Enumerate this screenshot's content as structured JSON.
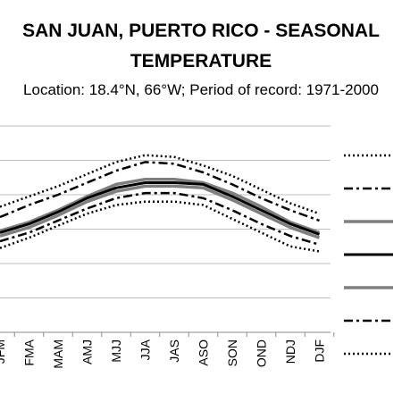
{
  "chart_data": {
    "type": "line",
    "title": "SAN JUAN, PUERTO RICO - SEASONAL TEMPERATURE",
    "title_line1": "SAN JUAN, PUERTO RICO - SEASONAL",
    "title_line2": "TEMPERATURE",
    "subtitle": "Location: 18.4°N, 66°W; Period of record: 1971-2000",
    "categories": [
      "JFM",
      "FMA",
      "MAM",
      "AMJ",
      "MJJ",
      "JJA",
      "JAS",
      "ASO",
      "SON",
      "OND",
      "NDJ",
      "DJF"
    ],
    "ylim": [
      0,
      6
    ],
    "grid": true,
    "legend_position": "right",
    "series": [
      {
        "name": "",
        "style": "dotted",
        "color": "#000000",
        "values": [
          3.65,
          3.95,
          4.25,
          4.6,
          4.95,
          5.15,
          5.1,
          4.85,
          4.55,
          4.15,
          3.75,
          3.45
        ]
      },
      {
        "name": "",
        "style": "dashdot",
        "color": "#000000",
        "values": [
          3.35,
          3.7,
          4.0,
          4.35,
          4.7,
          4.95,
          4.9,
          4.65,
          4.3,
          3.9,
          3.55,
          3.25
        ]
      },
      {
        "name": "",
        "style": "solid",
        "color": "#7f7f7f",
        "values": [
          2.95,
          3.2,
          3.55,
          3.95,
          4.3,
          4.45,
          4.45,
          4.35,
          4.05,
          3.65,
          3.2,
          2.9
        ]
      },
      {
        "name": "",
        "style": "solid",
        "color": "#000000",
        "values": [
          2.9,
          3.15,
          3.5,
          3.9,
          4.2,
          4.35,
          4.35,
          4.3,
          3.95,
          3.55,
          3.15,
          2.85
        ]
      },
      {
        "name": "",
        "style": "solid",
        "color": "#7f7f7f",
        "values": [
          2.8,
          3.05,
          3.4,
          3.8,
          4.1,
          4.25,
          4.25,
          4.2,
          3.85,
          3.45,
          3.05,
          2.75
        ]
      },
      {
        "name": "",
        "style": "dashdot",
        "color": "#000000",
        "values": [
          2.65,
          2.9,
          3.25,
          3.6,
          3.9,
          4.05,
          4.05,
          3.9,
          3.55,
          3.15,
          2.8,
          2.55
        ]
      },
      {
        "name": "",
        "style": "dotted",
        "color": "#000000",
        "values": [
          2.45,
          2.75,
          3.1,
          3.45,
          3.7,
          3.8,
          3.8,
          3.7,
          3.3,
          2.9,
          2.5,
          2.35
        ]
      }
    ]
  }
}
